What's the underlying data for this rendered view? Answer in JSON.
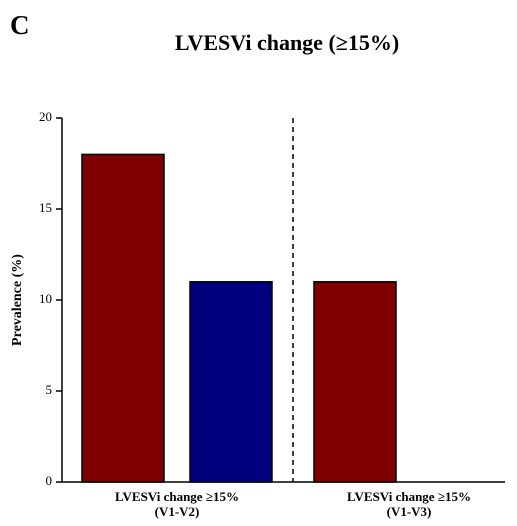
{
  "panel_label": "C",
  "chart_data": {
    "type": "bar",
    "title": "LVESVi change (≥15%)",
    "y_label": "Prevalence (%)",
    "categories": [
      [
        "LVESVi change ≥15%",
        "(V1-V2)"
      ],
      [
        "LVESVi change ≥15%",
        "(V1-V3)"
      ]
    ],
    "series": [
      {
        "color": "#7f0000",
        "values": [
          18,
          11
        ]
      },
      {
        "color": "#00007f",
        "values": [
          11,
          0
        ]
      }
    ],
    "ylim": [
      0,
      20
    ],
    "yticks": [
      0,
      5,
      10,
      15,
      20
    ]
  }
}
